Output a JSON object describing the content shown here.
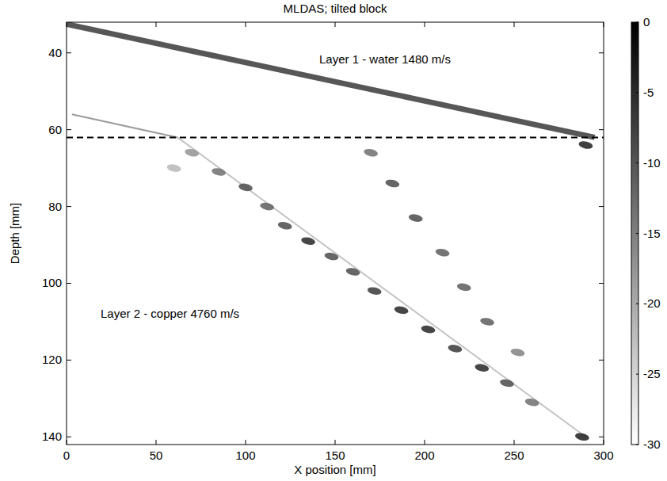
{
  "chart_data": {
    "type": "scatter",
    "title": "MLDAS; tilted block",
    "x_label": "X position [mm]",
    "y_label": "Depth [mm]",
    "annotations": [
      "Layer 1 - water 1480 m/s",
      "Layer 2 - copper 4760 m/s"
    ],
    "xlim": [
      0,
      300
    ],
    "xticks": [
      0,
      50,
      100,
      150,
      200,
      250,
      300
    ],
    "ylim": [
      32,
      142
    ],
    "yticks": [
      40,
      60,
      80,
      100,
      120,
      140
    ],
    "colorbar": {
      "range": [
        -30,
        0
      ],
      "ticks": [
        0,
        -5,
        -10,
        -15,
        -20,
        -25,
        -30
      ]
    },
    "series": [
      {
        "type": "line",
        "color": "#3a3a3a",
        "x": [
          0,
          50,
          100,
          150,
          200,
          250,
          295
        ],
        "values": [
          32.5,
          37.5,
          42.5,
          47.5,
          52.5,
          57.5,
          62
        ]
      },
      {
        "type": "line",
        "color": "#9a9a9a",
        "x": [
          3,
          62
        ],
        "values": [
          56,
          62
        ]
      },
      {
        "type": "line",
        "color": "#c4c4c4",
        "x": [
          62,
          290
        ],
        "values": [
          62,
          140
        ]
      },
      {
        "type": "scatter",
        "x": [
          60,
          70,
          85,
          100,
          112,
          122,
          135,
          148,
          160,
          172,
          187,
          202,
          217,
          232,
          246,
          260,
          288,
          290
        ],
        "values": [
          70,
          66,
          71,
          75,
          80,
          85,
          89,
          93,
          97,
          102,
          107,
          112,
          117,
          122,
          126,
          131,
          140,
          64
        ],
        "intensity": [
          -22,
          -18,
          -14,
          -10,
          -12,
          -10,
          -6,
          -10,
          -10,
          -8,
          -6,
          -6,
          -8,
          -6,
          -10,
          -14,
          -5,
          -5
        ]
      },
      {
        "type": "scatter",
        "x": [
          170,
          182,
          195,
          210,
          222,
          235,
          252
        ],
        "values": [
          66,
          74,
          83,
          92,
          101,
          110,
          118
        ],
        "intensity": [
          -14,
          -10,
          -10,
          -12,
          -12,
          -12,
          -16
        ]
      },
      {
        "type": "line",
        "line_style": "dashed",
        "color": "#000000",
        "x": [
          0,
          300
        ],
        "values": [
          62,
          62
        ]
      }
    ]
  }
}
